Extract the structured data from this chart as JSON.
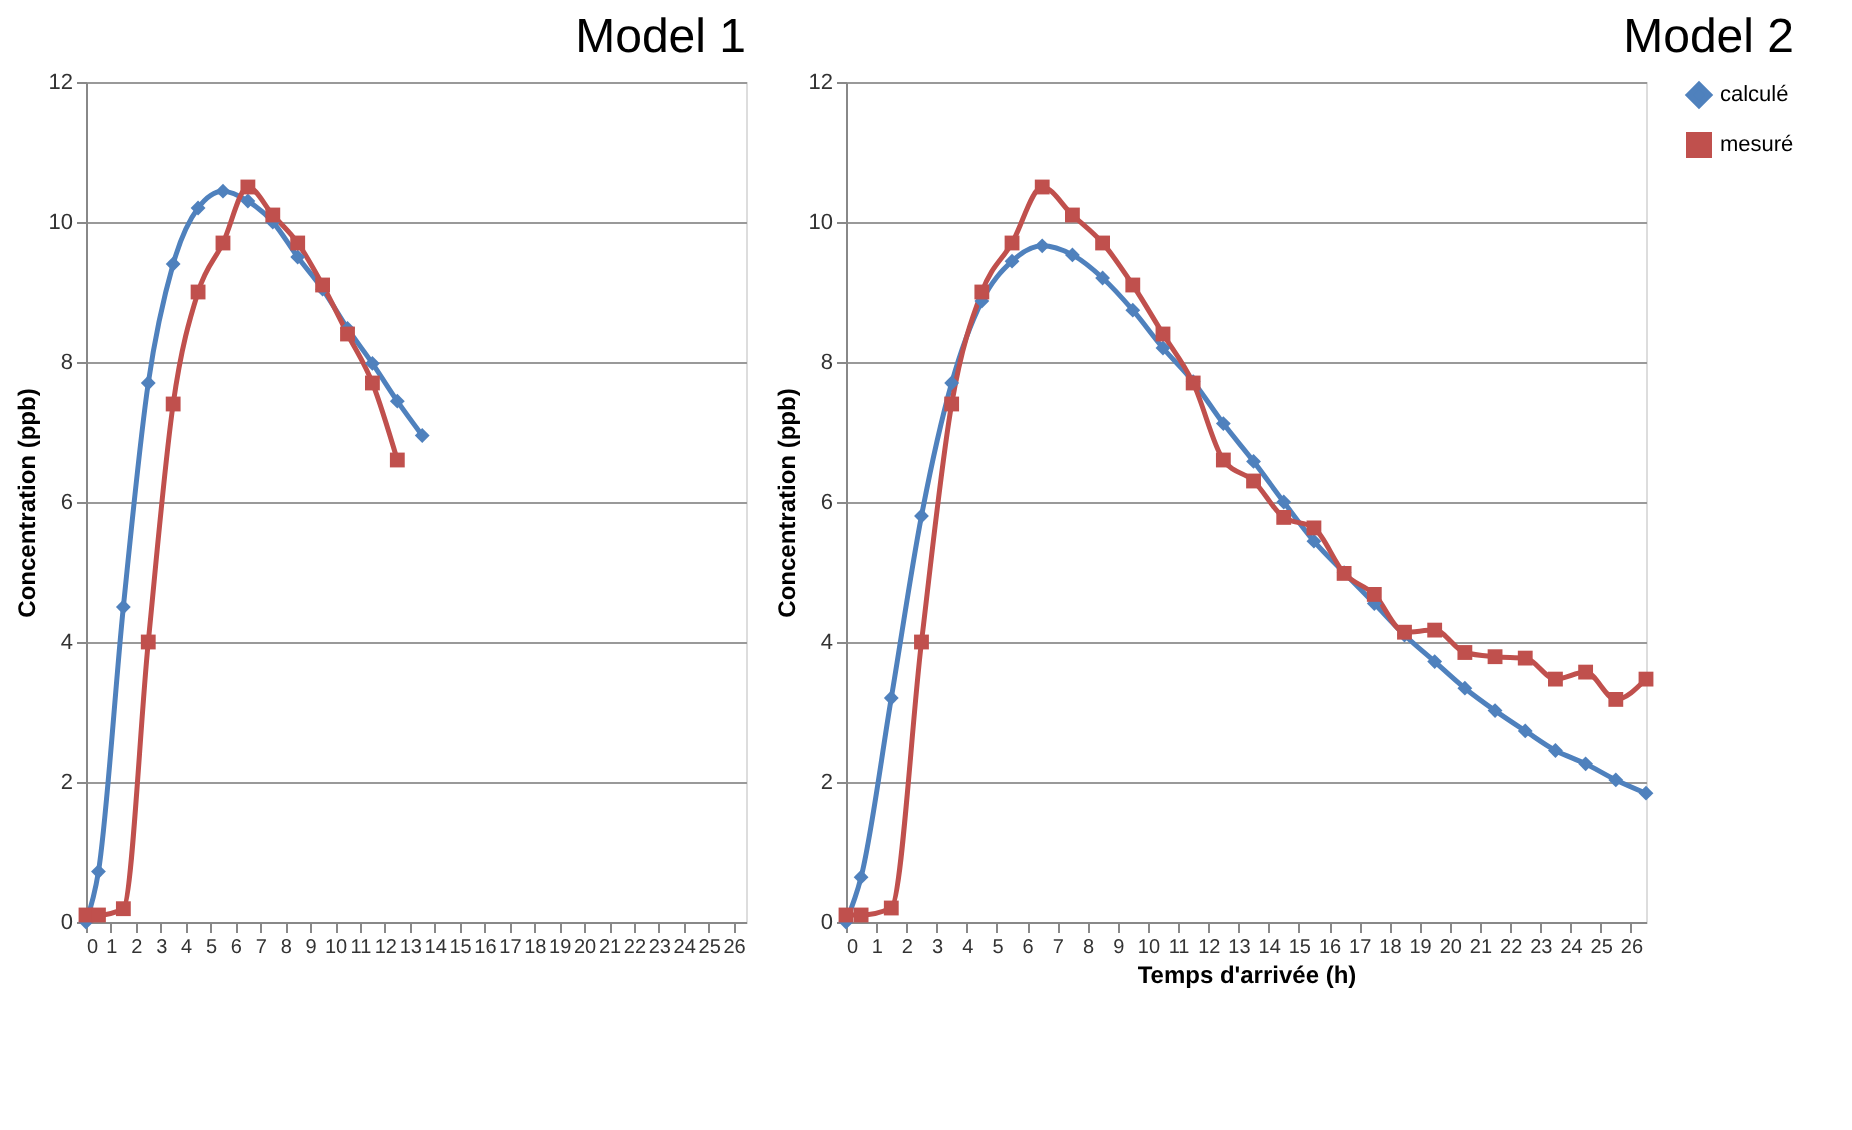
{
  "chart_data": [
    {
      "type": "line",
      "title": "Model 1",
      "ylabel": "Concentration (ppb)",
      "xlim": [
        0,
        26.5
      ],
      "xticks": [
        0,
        1,
        2,
        3,
        4,
        5,
        6,
        7,
        8,
        9,
        10,
        11,
        12,
        13,
        14,
        15,
        16,
        17,
        18,
        19,
        20,
        21,
        22,
        23,
        24,
        25,
        26
      ],
      "ylim": [
        0,
        12
      ],
      "yticks": [
        0,
        2,
        4,
        6,
        8,
        10,
        12
      ],
      "grid": "y",
      "x": [
        0,
        0.5,
        1.5,
        2.5,
        3.5,
        4.5,
        5.5,
        6.5,
        7.5,
        8.5,
        9.5,
        10.5,
        11.5,
        12.5,
        13.5
      ],
      "series": [
        {
          "color": "#4f81bd",
          "marker": "diamond",
          "values": [
            0,
            0.72,
            4.5,
            7.7,
            9.4,
            10.2,
            10.44,
            10.3,
            10.0,
            9.5,
            9.04,
            8.48,
            7.98,
            7.44,
            6.95
          ]
        },
        {
          "color": "#c0504d",
          "marker": "square",
          "values": [
            0.1,
            0.1,
            0.19,
            4.0,
            7.4,
            9.0,
            9.7,
            10.5,
            10.1,
            9.7,
            9.1,
            8.4,
            7.7,
            6.6,
            null
          ]
        }
      ]
    },
    {
      "type": "line",
      "title": "Model 2",
      "xlabel": "Temps d'arrivée (h)",
      "ylabel": "Concentration (ppb)",
      "xlim": [
        0,
        26.5
      ],
      "xticks": [
        0,
        1,
        2,
        3,
        4,
        5,
        6,
        7,
        8,
        9,
        10,
        11,
        12,
        13,
        14,
        15,
        16,
        17,
        18,
        19,
        20,
        21,
        22,
        23,
        24,
        25,
        26
      ],
      "ylim": [
        0,
        12
      ],
      "yticks": [
        0,
        2,
        4,
        6,
        8,
        10,
        12
      ],
      "grid": "y",
      "legend": "right",
      "x": [
        0,
        0.5,
        1.5,
        2.5,
        3.5,
        4.5,
        5.5,
        6.5,
        7.5,
        8.5,
        9.5,
        10.5,
        11.5,
        12.5,
        13.5,
        14.5,
        15.5,
        16.5,
        17.5,
        18.5,
        19.5,
        20.5,
        21.5,
        22.5,
        23.5,
        24.5,
        25.5,
        26.5
      ],
      "series": [
        {
          "name": "calculé",
          "color": "#4f81bd",
          "marker": "diamond",
          "values": [
            0,
            0.64,
            3.2,
            5.8,
            7.7,
            8.87,
            9.44,
            9.66,
            9.53,
            9.2,
            8.74,
            8.2,
            7.72,
            7.12,
            6.58,
            6.0,
            5.44,
            4.99,
            4.55,
            4.1,
            3.72,
            3.34,
            3.02,
            2.73,
            2.45,
            2.26,
            2.03,
            1.84
          ]
        },
        {
          "name": "mesuré",
          "color": "#c0504d",
          "marker": "square",
          "values": [
            0.1,
            0.1,
            0.2,
            4.0,
            7.4,
            9.0,
            9.7,
            10.5,
            10.1,
            9.7,
            9.1,
            8.4,
            7.7,
            6.6,
            6.3,
            5.78,
            5.63,
            4.98,
            4.68,
            4.14,
            4.17,
            3.85,
            3.79,
            3.77,
            3.47,
            3.57,
            3.18,
            3.47
          ]
        }
      ]
    }
  ]
}
